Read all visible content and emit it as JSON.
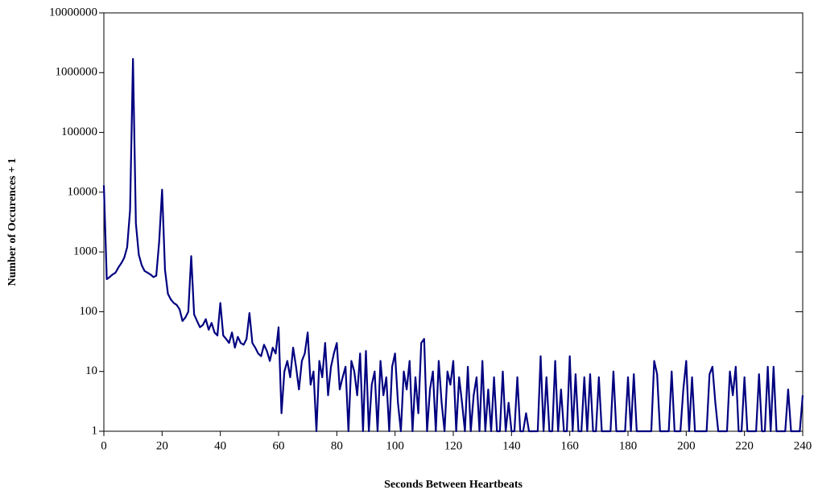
{
  "chart_data": {
    "type": "line",
    "yscale": "log",
    "xlabel": "Seconds Between Heartbeats",
    "ylabel": "Number of Occurences + 1",
    "xlim": [
      0,
      240
    ],
    "xticks": [
      0,
      20,
      40,
      60,
      80,
      100,
      120,
      140,
      160,
      180,
      200,
      220,
      240
    ],
    "ylim": [
      1,
      10000000
    ],
    "yticks": [
      1,
      10,
      100,
      1000,
      10000,
      100000,
      1000000,
      10000000
    ],
    "grid": false,
    "x": [
      0,
      1,
      2,
      3,
      4,
      5,
      6,
      7,
      8,
      9,
      10,
      11,
      12,
      13,
      14,
      15,
      16,
      17,
      18,
      19,
      20,
      21,
      22,
      23,
      24,
      25,
      26,
      27,
      28,
      29,
      30,
      31,
      32,
      33,
      34,
      35,
      36,
      37,
      38,
      39,
      40,
      41,
      42,
      43,
      44,
      45,
      46,
      47,
      48,
      49,
      50,
      51,
      52,
      53,
      54,
      55,
      56,
      57,
      58,
      59,
      60,
      61,
      62,
      63,
      64,
      65,
      66,
      67,
      68,
      69,
      70,
      71,
      72,
      73,
      74,
      75,
      76,
      77,
      78,
      79,
      80,
      81,
      82,
      83,
      84,
      85,
      86,
      87,
      88,
      89,
      90,
      91,
      92,
      93,
      94,
      95,
      96,
      97,
      98,
      99,
      100,
      101,
      102,
      103,
      104,
      105,
      106,
      107,
      108,
      109,
      110,
      111,
      112,
      113,
      114,
      115,
      116,
      117,
      118,
      119,
      120,
      121,
      122,
      123,
      124,
      125,
      126,
      127,
      128,
      129,
      130,
      131,
      132,
      133,
      134,
      135,
      136,
      137,
      138,
      139,
      140,
      141,
      142,
      143,
      144,
      145,
      146,
      147,
      148,
      149,
      150,
      151,
      152,
      153,
      154,
      155,
      156,
      157,
      158,
      159,
      160,
      161,
      162,
      163,
      164,
      165,
      166,
      167,
      168,
      169,
      170,
      171,
      172,
      173,
      174,
      175,
      176,
      177,
      178,
      179,
      180,
      181,
      182,
      183,
      184,
      185,
      186,
      187,
      188,
      189,
      190,
      191,
      192,
      193,
      194,
      195,
      196,
      197,
      198,
      199,
      200,
      201,
      202,
      203,
      204,
      205,
      206,
      207,
      208,
      209,
      210,
      211,
      212,
      213,
      214,
      215,
      216,
      217,
      218,
      219,
      220,
      221,
      222,
      223,
      224,
      225,
      226,
      227,
      228,
      229,
      230,
      231,
      232,
      233,
      234,
      235,
      236,
      237,
      238,
      239,
      240
    ],
    "series": [
      {
        "color": "#000080",
        "values": [
          13000,
          350,
          380,
          420,
          450,
          550,
          650,
          800,
          1200,
          5000,
          1700000,
          3000,
          900,
          600,
          480,
          450,
          420,
          380,
          400,
          1500,
          11000,
          500,
          200,
          160,
          140,
          130,
          110,
          70,
          80,
          100,
          850,
          90,
          70,
          55,
          60,
          75,
          50,
          65,
          45,
          40,
          140,
          40,
          35,
          30,
          45,
          25,
          38,
          30,
          28,
          35,
          95,
          30,
          25,
          20,
          18,
          28,
          22,
          15,
          25,
          20,
          55,
          2,
          10,
          15,
          8,
          25,
          12,
          5,
          15,
          20,
          45,
          6,
          10,
          1,
          15,
          8,
          30,
          4,
          12,
          20,
          30,
          5,
          8,
          12,
          1,
          15,
          10,
          4,
          20,
          1,
          22,
          1,
          6,
          10,
          1,
          15,
          4,
          8,
          1,
          12,
          20,
          3,
          1,
          10,
          5,
          15,
          1,
          8,
          2,
          30,
          35,
          1,
          5,
          10,
          1,
          15,
          3,
          1,
          10,
          6,
          15,
          1,
          8,
          3,
          1,
          12,
          1,
          4,
          8,
          1,
          15,
          1,
          5,
          1,
          8,
          1,
          1,
          10,
          1,
          3,
          1,
          1,
          8,
          1,
          1,
          2,
          1,
          1,
          1,
          1,
          18,
          1,
          8,
          1,
          1,
          15,
          1,
          5,
          1,
          1,
          18,
          1,
          9,
          1,
          1,
          8,
          1,
          9,
          1,
          1,
          8,
          1,
          1,
          1,
          1,
          10,
          1,
          1,
          1,
          1,
          8,
          1,
          9,
          1,
          1,
          1,
          1,
          1,
          1,
          15,
          9,
          1,
          1,
          1,
          1,
          10,
          1,
          1,
          1,
          5,
          15,
          1,
          8,
          1,
          1,
          1,
          1,
          1,
          9,
          12,
          3,
          1,
          1,
          1,
          1,
          10,
          4,
          12,
          1,
          1,
          8,
          1,
          1,
          1,
          1,
          9,
          1,
          1,
          12,
          1,
          12,
          1,
          1,
          1,
          1,
          5,
          1,
          1,
          1,
          1,
          4
        ]
      }
    ]
  }
}
